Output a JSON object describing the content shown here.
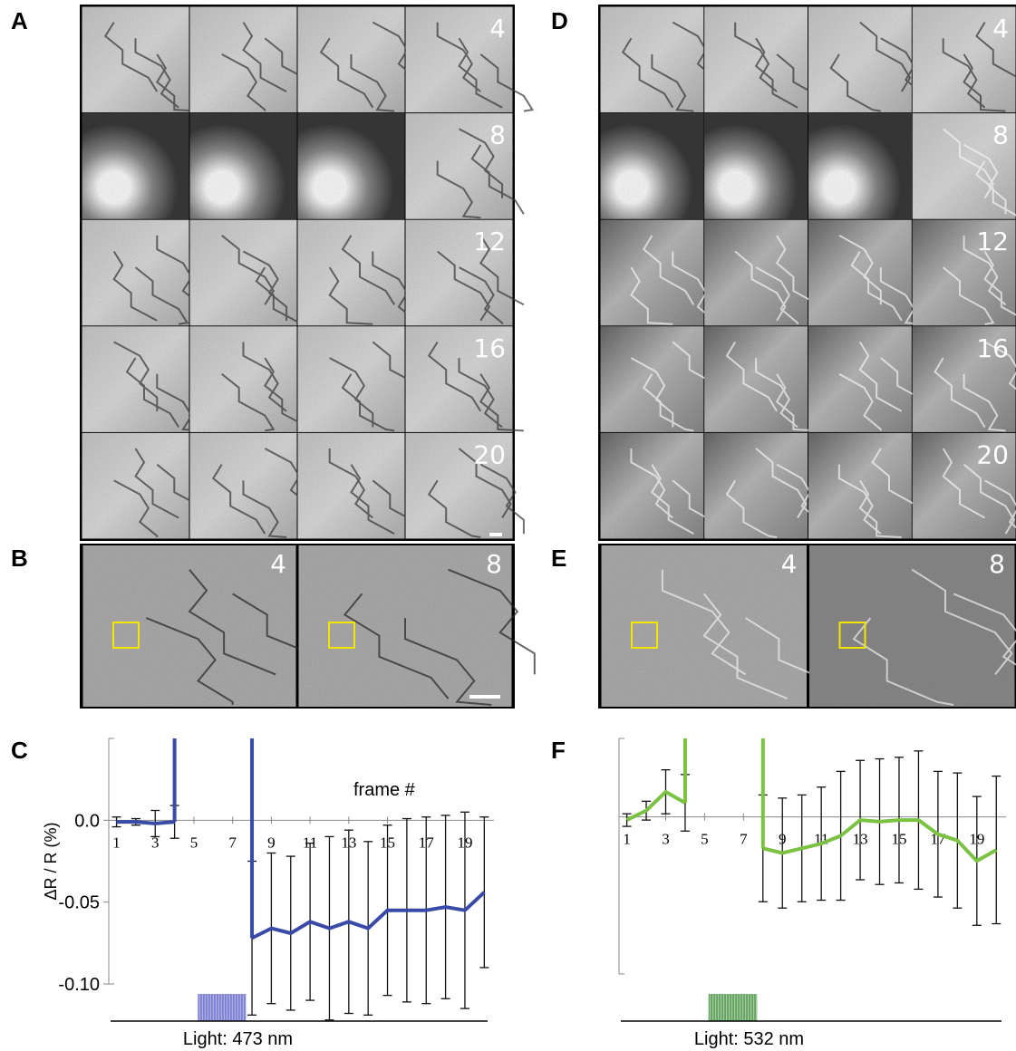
{
  "panels": [
    {
      "label": "A",
      "frame_labels": [
        "4",
        "8",
        "12",
        "16",
        "20"
      ]
    },
    {
      "label": "B",
      "frame_labels": [
        "4",
        "8"
      ]
    },
    {
      "label": "D",
      "frame_labels": [
        "4",
        "8",
        "12",
        "16",
        "20"
      ]
    },
    {
      "label": "E",
      "frame_labels": [
        "4",
        "8"
      ]
    }
  ],
  "chart_data": [
    {
      "type": "line",
      "panel_label": "C",
      "ylabel": "ΔR / R  (%)",
      "annotation": "frame #",
      "x": [
        1,
        2,
        3,
        4,
        5,
        6,
        7,
        8,
        9,
        10,
        11,
        12,
        13,
        14,
        15,
        16,
        17,
        18,
        19,
        20
      ],
      "series": [
        {
          "color": "#3a4aa8",
          "values": [
            -0.001,
            -0.001,
            -0.002,
            -0.001,
            null,
            null,
            null,
            -0.072,
            -0.066,
            -0.069,
            -0.062,
            -0.066,
            -0.062,
            -0.066,
            -0.055,
            -0.055,
            -0.055,
            -0.053,
            -0.055,
            -0.044
          ],
          "errors": [
            0.003,
            0.002,
            0.008,
            0.01,
            null,
            null,
            null,
            0.047,
            0.046,
            0.047,
            0.048,
            0.056,
            0.056,
            0.053,
            0.052,
            0.056,
            0.057,
            0.056,
            0.06,
            0.046
          ]
        }
      ],
      "xlim": [
        0.6,
        20.5
      ],
      "ylim": [
        -0.1,
        0.05
      ],
      "xticks": [
        1,
        3,
        5,
        7,
        9,
        11,
        13,
        15,
        17,
        19
      ],
      "yticks": [
        {
          "value": 0,
          "label": "0.0"
        },
        -0.05,
        {
          "value": -0.1,
          "label": "-0.10"
        }
      ],
      "light_label": "Light: 473 nm",
      "light_color": "#5b5fc7",
      "light_interval": [
        5.2,
        7.7
      ]
    },
    {
      "type": "line",
      "panel_label": "F",
      "x": [
        1,
        2,
        3,
        4,
        5,
        6,
        7,
        8,
        9,
        10,
        11,
        12,
        13,
        14,
        15,
        16,
        17,
        18,
        19,
        20
      ],
      "series": [
        {
          "color": "#7cc242",
          "values": [
            -0.002,
            0.004,
            0.016,
            0.009,
            null,
            null,
            null,
            -0.02,
            -0.023,
            -0.02,
            -0.017,
            -0.012,
            -0.002,
            -0.003,
            -0.002,
            -0.002,
            -0.011,
            -0.015,
            -0.028,
            -0.021
          ],
          "errors": [
            0.004,
            0.006,
            0.014,
            0.018,
            null,
            null,
            null,
            0.034,
            0.035,
            0.034,
            0.036,
            0.041,
            0.038,
            0.04,
            0.04,
            0.044,
            0.04,
            0.043,
            0.041,
            0.047
          ]
        }
      ],
      "xlim": [
        0.6,
        20.5
      ],
      "ylim": [
        -0.1,
        0.05
      ],
      "xticks": [
        1,
        3,
        5,
        7,
        9,
        11,
        13,
        15,
        17,
        19
      ],
      "light_label": "Light: 532 nm",
      "light_color": "#3f8f3a",
      "light_interval": [
        5.2,
        7.7
      ]
    }
  ]
}
